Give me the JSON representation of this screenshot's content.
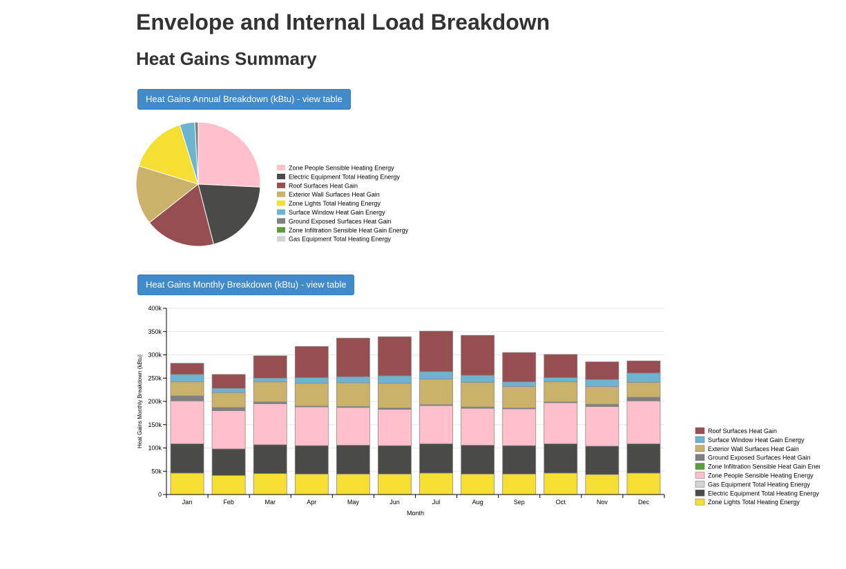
{
  "header": {
    "title": "Envelope and Internal Load Breakdown",
    "subtitle": "Heat Gains Summary"
  },
  "buttons": {
    "annual": "Heat Gains Annual Breakdown (kBtu) - view table",
    "monthly": "Heat Gains Monthly Breakdown (kBtu) - view table"
  },
  "chart_data": [
    {
      "type": "pie",
      "legend_position": "right",
      "slices": [
        {
          "label": "Zone People Sensible Heating Energy",
          "value": 25.8,
          "color": "#ffc0cb"
        },
        {
          "label": "Electric Equipment Total Heating Energy",
          "value": 20.3,
          "color": "#4a4a48"
        },
        {
          "label": "Roof Surfaces Heat Gain",
          "value": 18.4,
          "color": "#974e50"
        },
        {
          "label": "Exterior Wall Surfaces Heat Gain",
          "value": 15.4,
          "color": "#cbb26a"
        },
        {
          "label": "Zone Lights Total Heating Energy",
          "value": 15.5,
          "color": "#f5df33"
        },
        {
          "label": "Surface Window Heat Gain Energy",
          "value": 3.9,
          "color": "#6db4d1"
        },
        {
          "label": "Ground Exposed Surfaces Heat Gain",
          "value": 0.9,
          "color": "#7f7f7f"
        },
        {
          "label": "Zone Infiltration Sensible Heat Gain Energy",
          "value": 0,
          "color": "#5a9e3c"
        },
        {
          "label": "Gas Equipment Total Heating Energy",
          "value": 0,
          "color": "#d3d3d3"
        }
      ]
    },
    {
      "type": "bar",
      "stacked": true,
      "xlabel": "Month",
      "ylabel": "Heat Gains Monthly Breakdown (kBtu)",
      "ylim": [
        0,
        400000
      ],
      "yticks": [
        "0",
        "50k",
        "100k",
        "150k",
        "200k",
        "250k",
        "300k",
        "350k",
        "400k"
      ],
      "grid": true,
      "legend_position": "right",
      "categories": [
        "Jan",
        "Feb",
        "Mar",
        "Apr",
        "May",
        "Jun",
        "Jul",
        "Aug",
        "Sep",
        "Oct",
        "Nov",
        "Dec"
      ],
      "series": [
        {
          "name": "Zone Lights Total Heating Energy",
          "color": "#f5df33",
          "values": [
            46000,
            41000,
            45000,
            44000,
            44000,
            44000,
            46000,
            44000,
            44000,
            46000,
            43000,
            46000
          ]
        },
        {
          "name": "Electric Equipment Total Heating Energy",
          "color": "#4a4a48",
          "values": [
            63000,
            57000,
            62000,
            61000,
            62000,
            61000,
            63000,
            62000,
            61000,
            63000,
            61000,
            63000
          ]
        },
        {
          "name": "Gas Equipment Total Heating Energy",
          "color": "#d3d3d3",
          "values": [
            0,
            0,
            0,
            0,
            0,
            0,
            0,
            0,
            0,
            0,
            0,
            0
          ]
        },
        {
          "name": "Zone People Sensible Heating Energy",
          "color": "#ffc0cb",
          "values": [
            92000,
            82000,
            88000,
            83000,
            81000,
            78000,
            82000,
            79000,
            79000,
            88000,
            85000,
            92000
          ]
        },
        {
          "name": "Zone Infiltration Sensible Heat Gain Energy",
          "color": "#5a9e3c",
          "values": [
            0,
            0,
            0,
            0,
            0,
            0,
            0,
            0,
            0,
            0,
            0,
            0
          ]
        },
        {
          "name": "Ground Exposed Surfaces Heat Gain",
          "color": "#7f7f7f",
          "values": [
            11000,
            7000,
            4000,
            2000,
            2000,
            3000,
            2000,
            3000,
            2000,
            2000,
            5000,
            8000
          ]
        },
        {
          "name": "Exterior Wall Surfaces Heat Gain",
          "color": "#cbb26a",
          "values": [
            30000,
            32000,
            43000,
            49000,
            51000,
            53000,
            55000,
            53000,
            46000,
            43000,
            38000,
            32000
          ]
        },
        {
          "name": "Surface Window Heat Gain Energy",
          "color": "#6db4d1",
          "values": [
            16000,
            9000,
            8000,
            12000,
            13000,
            16000,
            16000,
            15000,
            10000,
            9000,
            15000,
            20000
          ]
        },
        {
          "name": "Roof Surfaces Heat Gain",
          "color": "#974e50",
          "values": [
            24000,
            30000,
            48000,
            67000,
            83000,
            84000,
            87000,
            86000,
            63000,
            50000,
            38000,
            26000
          ]
        }
      ]
    }
  ]
}
